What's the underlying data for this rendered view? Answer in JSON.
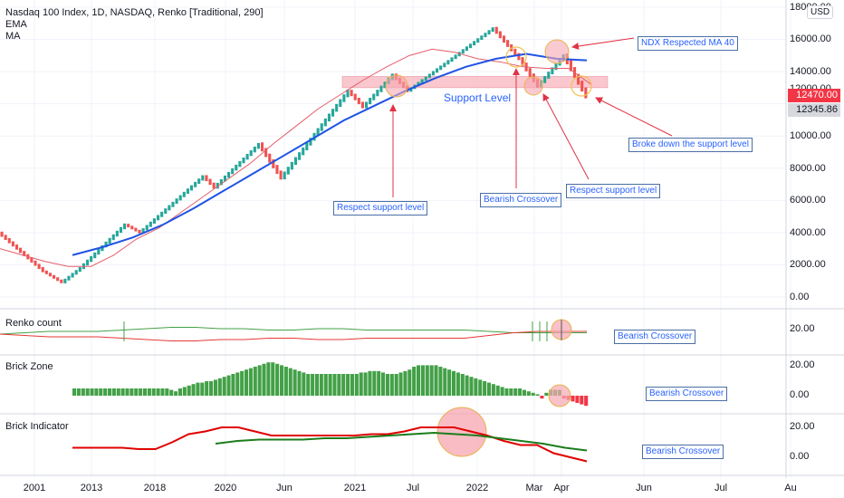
{
  "header": {
    "title": "Nasdaq 100 Index, 1D, NASDAQ, Renko [Traditional, 290]",
    "ema_label": "EMA",
    "ma_label": "MA"
  },
  "currency_badge": "USD",
  "price_axis": {
    "labels": [
      "18000.00",
      "16000.00",
      "14000.00",
      "12000.00",
      "10000.00",
      "8000.00",
      "6000.00",
      "4000.00",
      "2000.00",
      "0.00"
    ],
    "current_price": "12470.00",
    "current_price_color": "#f23645",
    "secondary_price": "12345.86",
    "secondary_price_color": "#c9c9d1"
  },
  "time_axis": {
    "labels": [
      "2001",
      "2013",
      "2018",
      "2020",
      "Jun",
      "2021",
      "Jul",
      "2022",
      "Mar",
      "Apr",
      "Jun",
      "Jul",
      "Au"
    ]
  },
  "colors": {
    "up_brick": "#26a69a",
    "down_brick": "#ef5350",
    "ema_line": "#e35d6a",
    "ma_line": "#1e53e5",
    "annotation": "#e03345",
    "support_zone": "#f8b4be",
    "note_text": "#2962ff"
  },
  "annotations": {
    "support_level": "Support Level",
    "ndx_respected_ma40": "NDX Respected MA 40",
    "broke_down": "Broke down the support level",
    "respect_support_1": "Respect support level",
    "bearish_crossover": "Bearish Crossover",
    "respect_support_2": "Respect support level"
  },
  "panes": {
    "renko_count": {
      "title": "Renko count",
      "axis_label": "20.00",
      "note": "Bearish Crossover"
    },
    "brick_zone": {
      "title": "Brick Zone",
      "axis_labels": [
        "20.00",
        "0.00"
      ],
      "note": "Bearish Crossover"
    },
    "brick_indicator": {
      "title": "Brick Indicator",
      "axis_labels": [
        "20.00",
        "0.00"
      ],
      "note": "Bearish Crossover"
    }
  },
  "chart_data": [
    {
      "type": "renko",
      "title": "Nasdaq 100 Index, 1D, NASDAQ, Renko [Traditional, 290]",
      "brick_size": 290,
      "ylim": [
        0,
        18000
      ],
      "support_zone": [
        13000,
        13700
      ],
      "key_prices": [
        {
          "brick": 0,
          "price": 4000
        },
        {
          "brick": 5,
          "price": 3000
        },
        {
          "brick": 12,
          "price": 1600
        },
        {
          "brick": 17,
          "price": 900
        },
        {
          "brick": 22,
          "price": 1800
        },
        {
          "brick": 34,
          "price": 4500
        },
        {
          "brick": 38,
          "price": 4000
        },
        {
          "brick": 55,
          "price": 7500
        },
        {
          "brick": 58,
          "price": 6800
        },
        {
          "brick": 70,
          "price": 9500
        },
        {
          "brick": 76,
          "price": 7400
        },
        {
          "brick": 94,
          "price": 12800
        },
        {
          "brick": 98,
          "price": 11800
        },
        {
          "brick": 106,
          "price": 13800
        },
        {
          "brick": 110,
          "price": 12800
        },
        {
          "brick": 133,
          "price": 16700
        },
        {
          "brick": 140,
          "price": 14800
        },
        {
          "brick": 145,
          "price": 13100
        },
        {
          "brick": 152,
          "price": 15000
        },
        {
          "brick": 158,
          "price": 12470
        }
      ],
      "series": [
        {
          "name": "EMA",
          "values": [
            3000,
            2600,
            2200,
            1900,
            1900,
            2600,
            3600,
            4300,
            5300,
            6300,
            7300,
            8300,
            9500,
            10600,
            11700,
            12600,
            13500,
            14300,
            15000,
            15400,
            15200,
            14800,
            14600,
            14300,
            14200,
            14200,
            13200
          ]
        },
        {
          "name": "MA",
          "values": [
            2600,
            3100,
            3700,
            4500,
            5500,
            6600,
            7700,
            8800,
            9900,
            11000,
            11900,
            12800,
            13600,
            14300,
            14800,
            15100,
            14800,
            14700
          ]
        }
      ]
    },
    {
      "type": "line",
      "title": "Renko count",
      "series": [
        {
          "values": [
            16,
            17,
            18,
            18,
            18,
            19,
            20,
            21,
            21,
            20,
            20,
            19,
            19,
            20,
            20,
            19,
            19,
            19,
            19,
            19,
            18,
            17,
            17,
            17,
            17
          ]
        },
        {
          "values": [
            16,
            15,
            14,
            14,
            14,
            13,
            12,
            11,
            11,
            12,
            12,
            13,
            13,
            12,
            12,
            13,
            13,
            13,
            13,
            13,
            15,
            17,
            18,
            18,
            18
          ]
        }
      ]
    },
    {
      "type": "bar",
      "title": "Brick Zone",
      "ylim": [
        -7,
        25
      ],
      "values": [
        5,
        5,
        5,
        5,
        5,
        5,
        5,
        5,
        5,
        5,
        5,
        5,
        5,
        5,
        5,
        5,
        5,
        5,
        5,
        5,
        5,
        5,
        4,
        3,
        5,
        6,
        7,
        8,
        9,
        9,
        10,
        10,
        11,
        12,
        13,
        14,
        15,
        16,
        17,
        18,
        19,
        20,
        21,
        22,
        23,
        23,
        22,
        21,
        20,
        19,
        18,
        17,
        16,
        15,
        15,
        15,
        15,
        15,
        15,
        15,
        15,
        15,
        15,
        15,
        15,
        16,
        16,
        17,
        17,
        17,
        16,
        15,
        15,
        15,
        16,
        17,
        18,
        20,
        21,
        21,
        21,
        21,
        21,
        20,
        19,
        18,
        17,
        16,
        15,
        14,
        13,
        12,
        11,
        10,
        9,
        8,
        7,
        6,
        5,
        5,
        5,
        5,
        4,
        3,
        2,
        1,
        -2,
        2,
        4,
        4,
        4,
        -2,
        -3,
        -4,
        -5,
        -6,
        -7
      ]
    },
    {
      "type": "line",
      "title": "Brick Indicator",
      "ylim": [
        -5,
        25
      ],
      "series": [
        {
          "values": [
            7,
            7,
            7,
            7,
            6,
            6,
            11,
            17,
            19,
            22,
            22,
            19,
            16,
            16,
            16,
            16,
            16,
            16,
            17,
            17,
            19,
            22,
            22,
            22,
            19,
            16,
            12,
            9,
            9,
            3,
            0,
            -3
          ]
        },
        {
          "values": [
            10,
            12,
            13,
            13,
            13,
            14,
            14,
            15,
            16,
            17,
            18,
            17,
            16,
            14,
            12,
            10,
            7,
            5
          ]
        }
      ]
    }
  ]
}
